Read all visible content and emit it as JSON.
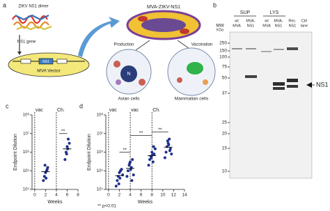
{
  "panel_a": {
    "letter": "a",
    "dimer_title": "ZIKV NS1 dimer",
    "gene_label": "NS1 gene",
    "vector_box": "NS1",
    "vector_label": "MVA Vector",
    "recombinant_label": "MVA-ZIKV-NS1",
    "production": "Production",
    "vaccination": "Vaccination",
    "nucleus": "N",
    "avian": "Avian cells",
    "mammalian": "Mammalian cells"
  },
  "panel_b": {
    "letter": "b",
    "groups": [
      "SUP",
      "LYS"
    ],
    "mw_title": [
      "MW",
      "KDa"
    ],
    "lanes": [
      [
        "wt",
        "MVA"
      ],
      [
        "MVA-",
        "NS1"
      ],
      [
        "wt",
        "MVA"
      ],
      [
        "MVA-",
        "NS1"
      ],
      [
        "Rec.",
        "NS1"
      ],
      [
        "Ctrl",
        "lane"
      ]
    ],
    "markers": [
      250,
      150,
      100,
      75,
      50,
      37,
      25,
      20,
      15,
      10
    ],
    "arrow_label": "NS1"
  },
  "chart_data": [
    {
      "type": "scatter",
      "label": "c",
      "ylabel": "Endpoint Dilution",
      "xlabel": "Weeks",
      "log_y": true,
      "color": "#1f2f8a",
      "xlim": [
        -0.5,
        8
      ],
      "ylim": [
        10000,
        100000000
      ],
      "xticks": [
        0,
        2,
        4,
        6,
        8
      ],
      "yticks": [
        {
          "value": 10000,
          "label": "10⁴"
        },
        {
          "value": 100000,
          "label": "10⁵"
        },
        {
          "value": 1000000,
          "label": "10⁶"
        },
        {
          "value": 10000000,
          "label": "10⁷"
        },
        {
          "value": 100000000,
          "label": "10⁸"
        }
      ],
      "x": [
        1.6,
        1.8,
        2.0,
        2.2,
        2.4,
        1.9,
        2.1,
        2.3,
        5.6,
        5.8,
        6.0,
        6.2,
        6.4,
        5.9,
        6.1
      ],
      "y": [
        30000,
        50000,
        80000,
        100000,
        150000,
        200000,
        40000,
        120000,
        400000,
        1000000,
        2000000,
        5000000,
        3000000,
        800000,
        1500000
      ],
      "medians": {
        "x": [
          2,
          6
        ],
        "y": [
          90000,
          1500000
        ]
      },
      "vlines": [
        {
          "x": 0,
          "label": "vac"
        },
        {
          "x": 4,
          "label": "Ch."
        }
      ],
      "brackets": [
        {
          "x": [
            4.5,
            6
          ],
          "y": 10000000,
          "label": "**"
        }
      ]
    },
    {
      "type": "scatter",
      "label": "d",
      "ylabel": "Endpoint Dilution",
      "xlabel": "Weeks",
      "log_y": true,
      "color": "#1f2f8a",
      "xlim": [
        -0.5,
        14
      ],
      "ylim": [
        10000,
        100000000
      ],
      "xticks": [
        0,
        2,
        4,
        6,
        8,
        10,
        12,
        14
      ],
      "yticks": [
        {
          "value": 10000,
          "label": "10⁴"
        },
        {
          "value": 100000,
          "label": "10⁵"
        },
        {
          "value": 1000000,
          "label": "10⁶"
        },
        {
          "value": 10000000,
          "label": "10⁷"
        },
        {
          "value": 100000000,
          "label": "10⁸"
        }
      ],
      "x": [
        1.4,
        1.6,
        1.8,
        2.0,
        2.2,
        2.4,
        2.6,
        1.9,
        2.1,
        3.4,
        3.6,
        3.8,
        4.0,
        4.2,
        4.4,
        4.6,
        3.9,
        4.1,
        4.3,
        7.4,
        7.6,
        7.8,
        8.0,
        8.2,
        8.4,
        8.6,
        7.9,
        8.1,
        8.3,
        10.4,
        10.6,
        10.8,
        11.0,
        11.2,
        11.4,
        11.6,
        10.9,
        11.1,
        11.3
      ],
      "y": [
        15000,
        30000,
        50000,
        80000,
        100000,
        120000,
        60000,
        20000,
        40000,
        50000,
        100000,
        200000,
        300000,
        150000,
        400000,
        60000,
        250000,
        120000,
        30000,
        200000,
        400000,
        600000,
        1000000,
        300000,
        800000,
        1500000,
        500000,
        700000,
        2000000,
        500000,
        1000000,
        2000000,
        3000000,
        5000000,
        1500000,
        800000,
        4000000,
        2500000,
        1200000
      ],
      "medians": {
        "x": [
          2,
          4,
          8,
          11
        ],
        "y": [
          55000,
          135000,
          650000,
          1850000
        ]
      },
      "vlines": [
        {
          "x": 0,
          "label": "vac"
        },
        {
          "x": 4,
          "label": "vac"
        },
        {
          "x": 8,
          "label": "Ch."
        }
      ],
      "brackets": [
        {
          "x": [
            2,
            4
          ],
          "y": 1000000,
          "label": "**"
        },
        {
          "x": [
            4,
            8
          ],
          "y": 8000000,
          "label": "**"
        },
        {
          "x": [
            8,
            11
          ],
          "y": 12000000,
          "label": "**"
        }
      ]
    }
  ],
  "footnote": "** p<0.01"
}
